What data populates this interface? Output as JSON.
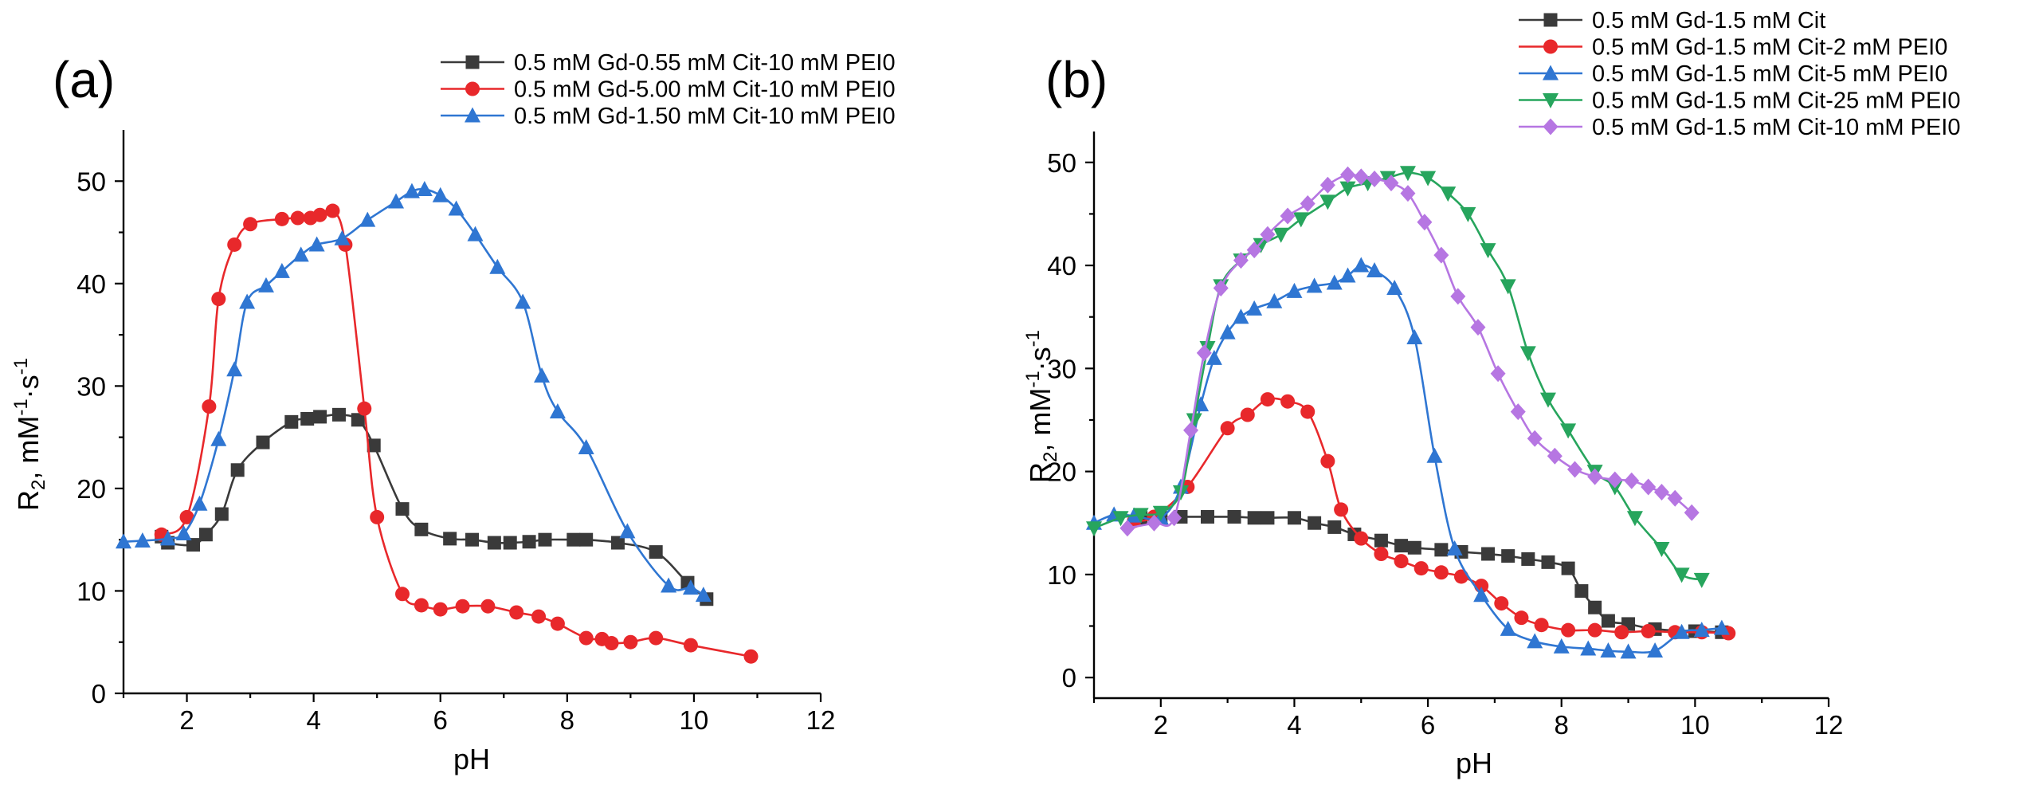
{
  "chart_data": [
    {
      "panel": "(a)",
      "type": "line",
      "xlabel": "pH",
      "ylabel": {
        "base": "R",
        "sub": "2",
        "unit_prefix": ", mM",
        "sup1": "-1",
        "mid": "·s",
        "sup2": "-1"
      },
      "xlim": [
        1,
        12
      ],
      "ylim": [
        0,
        55
      ],
      "xticks": [
        2,
        4,
        6,
        8,
        10,
        12
      ],
      "yticks": [
        0,
        10,
        20,
        30,
        40,
        50
      ],
      "legend_position": "top-right",
      "series": [
        {
          "name": "0.5 mM Gd-0.55 mM Cit-10 mM PEI0",
          "color": "#3a3a3a",
          "marker": "square",
          "x": [
            1.6,
            1.7,
            2.1,
            2.3,
            2.55,
            2.8,
            3.2,
            3.65,
            3.9,
            4.1,
            4.4,
            4.7,
            4.95,
            5.4,
            5.7,
            6.15,
            6.5,
            6.85,
            7.1,
            7.4,
            7.65,
            8.1,
            8.3,
            8.8,
            9.4,
            9.9,
            10.2
          ],
          "y": [
            15.3,
            14.7,
            14.5,
            15.5,
            17.5,
            21.8,
            24.5,
            26.5,
            26.8,
            27.0,
            27.2,
            26.7,
            24.2,
            18.0,
            16.0,
            15.1,
            15.0,
            14.7,
            14.7,
            14.8,
            15.0,
            15.0,
            15.0,
            14.7,
            13.8,
            10.8,
            9.2
          ]
        },
        {
          "name": "0.5 mM Gd-5.00 mM Cit-10 mM PEI0",
          "color": "#e8282b",
          "marker": "circle",
          "x": [
            1.6,
            2.0,
            2.35,
            2.5,
            2.75,
            3.0,
            3.5,
            3.75,
            3.95,
            4.1,
            4.3,
            4.5,
            4.8,
            5.0,
            5.4,
            5.7,
            6.0,
            6.35,
            6.75,
            7.2,
            7.55,
            7.85,
            8.3,
            8.55,
            8.7,
            9.0,
            9.4,
            9.95,
            10.9
          ],
          "y": [
            15.5,
            17.2,
            28.0,
            38.5,
            43.8,
            45.8,
            46.3,
            46.4,
            46.4,
            46.7,
            47.1,
            43.8,
            27.8,
            17.2,
            9.7,
            8.6,
            8.2,
            8.5,
            8.5,
            7.9,
            7.5,
            6.8,
            5.4,
            5.3,
            4.9,
            5.0,
            5.4,
            4.7,
            3.6
          ]
        },
        {
          "name": "0.5 mM Gd-1.50 mM Cit-10 mM PEI0",
          "color": "#2f76d2",
          "marker": "triangle-up",
          "x": [
            1.0,
            1.3,
            1.7,
            1.95,
            2.2,
            2.5,
            2.75,
            2.95,
            3.25,
            3.5,
            3.8,
            4.05,
            4.45,
            4.85,
            5.3,
            5.55,
            5.75,
            6.0,
            6.25,
            6.55,
            6.9,
            7.3,
            7.6,
            7.85,
            8.3,
            8.95,
            9.6,
            9.95,
            10.15
          ],
          "y": [
            14.8,
            14.9,
            15.1,
            15.6,
            18.5,
            24.8,
            31.6,
            38.2,
            39.8,
            41.2,
            42.8,
            43.8,
            44.4,
            46.2,
            48.0,
            49.0,
            49.2,
            48.6,
            47.3,
            44.8,
            41.6,
            38.2,
            31.0,
            27.5,
            24.0,
            15.8,
            10.5,
            10.3,
            9.6
          ]
        }
      ]
    },
    {
      "panel": "(b)",
      "type": "line",
      "xlabel": "pH",
      "ylabel": {
        "base": "R",
        "sub": "2",
        "unit_prefix": ", mM",
        "sup1": "-1",
        "mid": "·s",
        "sup2": "-1"
      },
      "xlim": [
        1,
        12
      ],
      "ylim": [
        -2,
        53
      ],
      "xticks": [
        2,
        4,
        6,
        8,
        10,
        12
      ],
      "yticks": [
        0,
        10,
        20,
        30,
        40,
        50
      ],
      "legend_position": "top-right",
      "series": [
        {
          "name": "0.5 mM Gd-1.5 mM Cit",
          "color": "#3a3a3a",
          "marker": "square",
          "x": [
            1.7,
            2.0,
            2.3,
            2.7,
            3.1,
            3.4,
            3.6,
            4.0,
            4.3,
            4.6,
            4.9,
            5.3,
            5.6,
            5.8,
            6.2,
            6.5,
            6.9,
            7.2,
            7.5,
            7.8,
            8.1,
            8.3,
            8.5,
            8.7,
            9.0,
            9.4,
            10.0,
            10.4
          ],
          "y": [
            15.5,
            15.5,
            15.6,
            15.6,
            15.6,
            15.5,
            15.5,
            15.5,
            15.0,
            14.6,
            13.9,
            13.3,
            12.8,
            12.6,
            12.4,
            12.2,
            12.0,
            11.8,
            11.5,
            11.2,
            10.6,
            8.4,
            6.8,
            5.5,
            5.2,
            4.7,
            4.5,
            4.4
          ]
        },
        {
          "name": "0.5 mM Gd-1.5 mM Cit-2 mM PEI0",
          "color": "#e8282b",
          "marker": "circle",
          "x": [
            1.6,
            1.9,
            2.4,
            3.0,
            3.3,
            3.6,
            3.9,
            4.2,
            4.5,
            4.7,
            5.0,
            5.3,
            5.6,
            5.9,
            6.2,
            6.5,
            6.8,
            7.1,
            7.4,
            7.7,
            8.1,
            8.5,
            8.9,
            9.3,
            9.7,
            10.1,
            10.5
          ],
          "y": [
            15.2,
            15.6,
            18.5,
            24.2,
            25.5,
            27.0,
            26.8,
            25.8,
            21.0,
            16.3,
            13.5,
            12.0,
            11.3,
            10.6,
            10.2,
            9.8,
            8.9,
            7.2,
            5.8,
            5.1,
            4.6,
            4.6,
            4.4,
            4.5,
            4.4,
            4.4,
            4.3
          ]
        },
        {
          "name": "0.5 mM Gd-1.5 mM Cit-5 mM PEI0",
          "color": "#2f76d2",
          "marker": "triangle-up",
          "x": [
            1.0,
            1.3,
            1.6,
            2.0,
            2.3,
            2.6,
            2.8,
            3.0,
            3.2,
            3.4,
            3.7,
            4.0,
            4.3,
            4.6,
            4.8,
            5.0,
            5.2,
            5.5,
            5.8,
            6.1,
            6.4,
            6.8,
            7.2,
            7.6,
            8.0,
            8.4,
            8.7,
            9.0,
            9.4,
            9.8,
            10.1,
            10.4
          ],
          "y": [
            15.0,
            15.8,
            15.7,
            15.5,
            18.5,
            26.5,
            31.0,
            33.5,
            35.0,
            35.8,
            36.5,
            37.5,
            38.0,
            38.3,
            39.0,
            40.0,
            39.5,
            37.8,
            33.0,
            21.5,
            12.5,
            8.0,
            4.7,
            3.5,
            3.0,
            2.8,
            2.6,
            2.5,
            2.6,
            4.4,
            4.6,
            4.8
          ]
        },
        {
          "name": "0.5 mM Gd-1.5 mM Cit-25 mM PEI0",
          "color": "#27a55d",
          "marker": "triangle-down",
          "x": [
            1.0,
            1.4,
            1.7,
            2.0,
            2.3,
            2.5,
            2.7,
            2.9,
            3.2,
            3.5,
            3.8,
            4.1,
            4.5,
            4.8,
            5.1,
            5.4,
            5.7,
            6.0,
            6.3,
            6.6,
            6.9,
            7.2,
            7.5,
            7.8,
            8.1,
            8.5,
            8.8,
            9.1,
            9.5,
            9.8,
            10.1
          ],
          "y": [
            14.5,
            15.5,
            15.8,
            16.0,
            18.0,
            25.0,
            32.0,
            38.0,
            40.5,
            42.0,
            43.0,
            44.5,
            46.2,
            47.5,
            48.0,
            48.5,
            49.0,
            48.5,
            47.0,
            45.0,
            41.5,
            38.0,
            31.5,
            27.0,
            24.0,
            20.0,
            18.5,
            15.5,
            12.5,
            10.0,
            9.5
          ]
        },
        {
          "name": "0.5 mM Gd-1.5 mM Cit-10 mM PEI0",
          "color": "#b676e2",
          "marker": "diamond",
          "x": [
            1.5,
            1.9,
            2.2,
            2.45,
            2.65,
            2.9,
            3.2,
            3.4,
            3.6,
            3.9,
            4.2,
            4.5,
            4.8,
            5.0,
            5.2,
            5.45,
            5.7,
            5.95,
            6.2,
            6.45,
            6.75,
            7.05,
            7.35,
            7.6,
            7.9,
            8.2,
            8.5,
            8.8,
            9.05,
            9.3,
            9.5,
            9.7,
            9.95
          ],
          "y": [
            14.5,
            15.0,
            15.5,
            24.0,
            31.5,
            37.8,
            40.5,
            41.5,
            43.0,
            44.8,
            46.0,
            47.8,
            48.8,
            48.6,
            48.4,
            48.0,
            47.0,
            44.2,
            41.0,
            37.0,
            34.0,
            29.5,
            25.8,
            23.2,
            21.5,
            20.2,
            19.5,
            19.2,
            19.1,
            18.5,
            18.0,
            17.4,
            16.0
          ]
        }
      ]
    }
  ]
}
